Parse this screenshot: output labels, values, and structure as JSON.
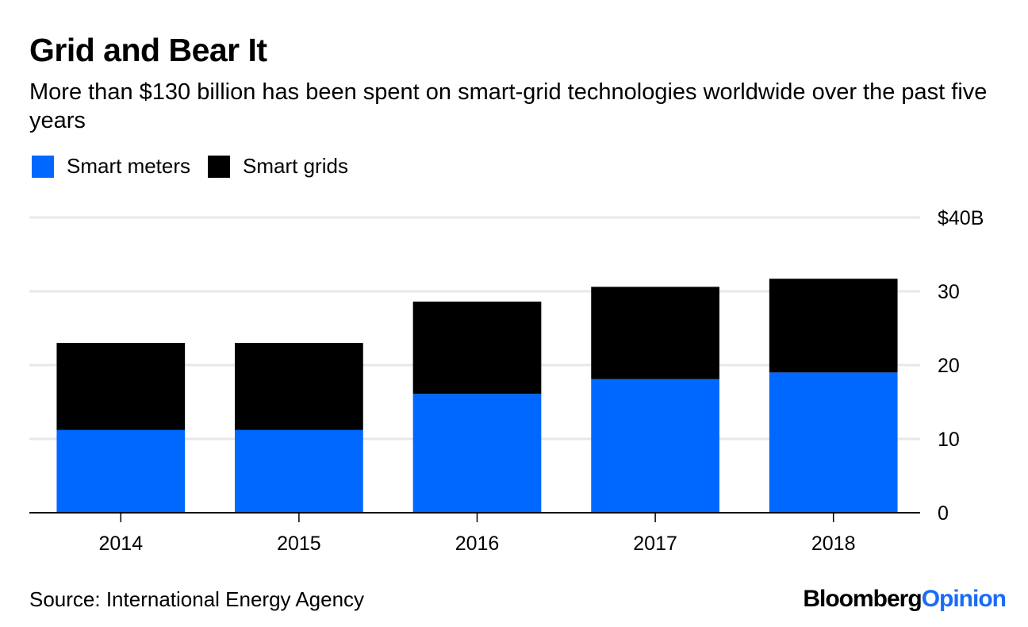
{
  "chart_data": {
    "type": "bar",
    "stacked": true,
    "title": "Grid and Bear It",
    "subtitle": "More than $130 billion has been spent on smart-grid technologies worldwide over the past five years",
    "categories": [
      "2014",
      "2015",
      "2016",
      "2017",
      "2018"
    ],
    "series": [
      {
        "name": "Smart meters",
        "color": "#0068ff",
        "values": [
          11.2,
          11.2,
          16.1,
          18.1,
          19.0
        ]
      },
      {
        "name": "Smart grids",
        "color": "#000000",
        "values": [
          11.8,
          11.8,
          12.5,
          12.5,
          12.7
        ]
      }
    ],
    "totals": [
      23.0,
      23.0,
      28.6,
      30.6,
      31.7
    ],
    "xlabel": "",
    "ylabel": "",
    "ylim": [
      0,
      40
    ],
    "yticks": [
      0,
      10,
      20,
      30,
      40
    ],
    "ytick_labels": [
      "0",
      "10",
      "20",
      "30",
      "$40B"
    ],
    "y_axis_position": "right",
    "grid": true,
    "legend_position": "top-left",
    "source": "Source: International Energy Agency"
  },
  "branding": {
    "part1": "Bloomberg",
    "part2": "Opinion"
  }
}
